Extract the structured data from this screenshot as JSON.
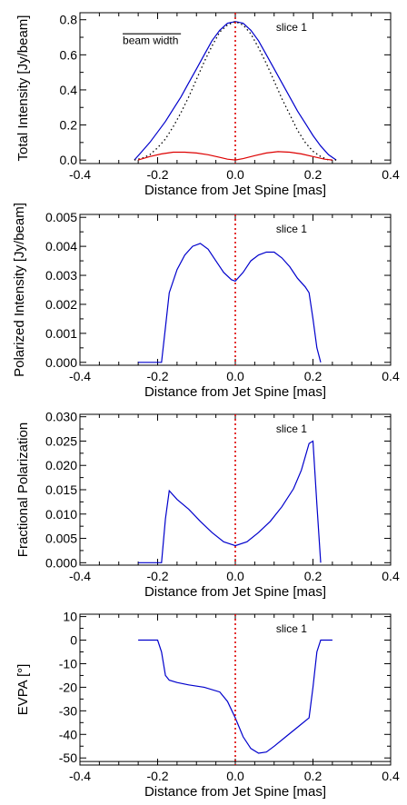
{
  "chart_data": [
    {
      "type": "line",
      "panel": "panel1",
      "xlabel": "Distance from Jet Spine [mas]",
      "ylabel": "Total Intensity [Jy/beam]",
      "xlim": [
        -0.4,
        0.4
      ],
      "ylim": [
        -0.02,
        0.84
      ],
      "x_ticks": [
        -0.4,
        -0.2,
        0.0,
        0.2,
        0.4
      ],
      "x_tick_labels": [
        "-0.4",
        "-0.2",
        "0.0",
        "0.2",
        "0.4"
      ],
      "y_ticks": [
        0.0,
        0.2,
        0.4,
        0.6,
        0.8
      ],
      "y_tick_labels": [
        "0.0",
        "0.2",
        "0.4",
        "0.6",
        "0.8"
      ],
      "panel_label": "slice 1",
      "vertical_line_x": 0.0,
      "annotation": {
        "label": "beam width",
        "x_start": -0.29,
        "x_end": -0.14,
        "y": 0.72,
        "label_y": 0.66
      },
      "series": [
        {
          "color": "#0000cc",
          "style": "solid",
          "x": [
            -0.26,
            -0.24,
            -0.22,
            -0.2,
            -0.18,
            -0.16,
            -0.14,
            -0.12,
            -0.1,
            -0.08,
            -0.06,
            -0.04,
            -0.02,
            0.0,
            0.02,
            0.04,
            0.06,
            0.08,
            0.1,
            0.12,
            0.14,
            0.16,
            0.18,
            0.2,
            0.22,
            0.24,
            0.26
          ],
          "y": [
            0.0,
            0.05,
            0.1,
            0.16,
            0.22,
            0.29,
            0.36,
            0.44,
            0.52,
            0.6,
            0.68,
            0.74,
            0.78,
            0.79,
            0.78,
            0.74,
            0.68,
            0.6,
            0.52,
            0.44,
            0.36,
            0.28,
            0.21,
            0.14,
            0.08,
            0.03,
            0.0
          ]
        },
        {
          "color": "#000000",
          "style": "dotted",
          "x": [
            -0.26,
            -0.24,
            -0.22,
            -0.2,
            -0.18,
            -0.16,
            -0.14,
            -0.12,
            -0.1,
            -0.08,
            -0.06,
            -0.04,
            -0.02,
            0.0,
            0.02,
            0.04,
            0.06,
            0.08,
            0.1,
            0.12,
            0.14,
            0.16,
            0.18,
            0.2,
            0.22,
            0.24,
            0.26
          ],
          "y": [
            0.0,
            0.01,
            0.03,
            0.07,
            0.12,
            0.19,
            0.27,
            0.36,
            0.46,
            0.56,
            0.65,
            0.73,
            0.77,
            0.79,
            0.77,
            0.72,
            0.64,
            0.55,
            0.45,
            0.35,
            0.26,
            0.17,
            0.1,
            0.05,
            0.02,
            0.0,
            0.0
          ]
        },
        {
          "color": "#dd0000",
          "style": "solid",
          "x": [
            -0.25,
            -0.22,
            -0.19,
            -0.16,
            -0.13,
            -0.1,
            -0.07,
            -0.04,
            -0.02,
            0.0,
            0.02,
            0.05,
            0.08,
            0.11,
            0.14,
            0.17,
            0.2,
            0.23,
            0.25
          ],
          "y": [
            0.0,
            0.02,
            0.035,
            0.045,
            0.045,
            0.04,
            0.03,
            0.015,
            0.005,
            0.0,
            0.008,
            0.025,
            0.04,
            0.048,
            0.045,
            0.035,
            0.02,
            0.005,
            0.0
          ]
        }
      ]
    },
    {
      "type": "line",
      "panel": "panel2",
      "xlabel": "Distance from Jet Spine [mas]",
      "ylabel": "Polarized Intensity [Jy/beam]",
      "xlim": [
        -0.4,
        0.4
      ],
      "ylim": [
        -0.0001,
        0.0051
      ],
      "x_ticks": [
        -0.4,
        -0.2,
        0.0,
        0.2,
        0.4
      ],
      "x_tick_labels": [
        "-0.4",
        "-0.2",
        "0.0",
        "0.2",
        "0.4"
      ],
      "y_ticks": [
        0.0,
        0.001,
        0.002,
        0.003,
        0.004,
        0.005
      ],
      "y_tick_labels": [
        "0.000",
        "0.001",
        "0.002",
        "0.003",
        "0.004",
        "0.005"
      ],
      "panel_label": "slice 1",
      "vertical_line_x": 0.0,
      "series": [
        {
          "color": "#0000cc",
          "style": "solid",
          "x": [
            -0.25,
            -0.19,
            -0.18,
            -0.17,
            -0.15,
            -0.13,
            -0.11,
            -0.09,
            -0.07,
            -0.05,
            -0.03,
            -0.01,
            0.0,
            0.02,
            0.04,
            0.06,
            0.08,
            0.1,
            0.12,
            0.14,
            0.16,
            0.18,
            0.19,
            0.2,
            0.21,
            0.22
          ],
          "y": [
            0.0,
            0.0,
            0.0012,
            0.0024,
            0.0032,
            0.0037,
            0.004,
            0.0041,
            0.0039,
            0.0035,
            0.0031,
            0.00285,
            0.0028,
            0.0031,
            0.0035,
            0.0037,
            0.0038,
            0.0038,
            0.0036,
            0.0033,
            0.0029,
            0.0026,
            0.0024,
            0.0015,
            0.0005,
            0.0
          ]
        }
      ]
    },
    {
      "type": "line",
      "panel": "panel3",
      "xlabel": "Distance from Jet Spine [mas]",
      "ylabel": "Fractional Polarization",
      "xlim": [
        -0.4,
        0.4
      ],
      "ylim": [
        -0.0005,
        0.0305
      ],
      "x_ticks": [
        -0.4,
        -0.2,
        0.0,
        0.2,
        0.4
      ],
      "x_tick_labels": [
        "-0.4",
        "-0.2",
        "0.0",
        "0.2",
        "0.4"
      ],
      "y_ticks": [
        0.0,
        0.005,
        0.01,
        0.015,
        0.02,
        0.025,
        0.03
      ],
      "y_tick_labels": [
        "0.000",
        "0.005",
        "0.010",
        "0.015",
        "0.020",
        "0.025",
        "0.030"
      ],
      "panel_label": "slice 1",
      "vertical_line_x": 0.0,
      "series": [
        {
          "color": "#0000cc",
          "style": "solid",
          "x": [
            -0.25,
            -0.19,
            -0.18,
            -0.17,
            -0.15,
            -0.12,
            -0.09,
            -0.06,
            -0.03,
            0.0,
            0.03,
            0.06,
            0.09,
            0.12,
            0.15,
            0.17,
            0.19,
            0.2,
            0.21,
            0.22
          ],
          "y": [
            0.0,
            0.0,
            0.009,
            0.0148,
            0.013,
            0.011,
            0.0085,
            0.0062,
            0.0043,
            0.0035,
            0.0043,
            0.0062,
            0.0085,
            0.0115,
            0.0152,
            0.019,
            0.0245,
            0.025,
            0.012,
            0.0
          ]
        }
      ]
    },
    {
      "type": "line",
      "panel": "panel4",
      "xlabel": "Distance from Jet Spine [mas]",
      "ylabel": "EVPA [°]",
      "xlim": [
        -0.4,
        0.4
      ],
      "ylim": [
        -53,
        11
      ],
      "x_ticks": [
        -0.4,
        -0.2,
        0.0,
        0.2,
        0.4
      ],
      "x_tick_labels": [
        "-0.4",
        "-0.2",
        "0.0",
        "0.2",
        "0.4"
      ],
      "y_ticks": [
        10,
        0,
        -10,
        -20,
        -30,
        -40,
        -50
      ],
      "y_tick_labels": [
        "10",
        "0",
        "-10",
        "-20",
        "-30",
        "-40",
        "-50"
      ],
      "panel_label": "slice 1",
      "vertical_line_x": 0.0,
      "horizontal_line_y": -51.5,
      "series": [
        {
          "color": "#0000cc",
          "style": "solid",
          "x": [
            -0.25,
            -0.2,
            -0.19,
            -0.18,
            -0.17,
            -0.15,
            -0.12,
            -0.08,
            -0.04,
            -0.02,
            0.0,
            0.02,
            0.04,
            0.06,
            0.08,
            0.1,
            0.13,
            0.16,
            0.19,
            0.2,
            0.21,
            0.22,
            0.25
          ],
          "y": [
            0.0,
            0.0,
            -5,
            -15,
            -17,
            -18,
            -19,
            -20,
            -22,
            -26,
            -33,
            -41,
            -46,
            -48,
            -47.5,
            -45,
            -41,
            -37,
            -33,
            -20,
            -5,
            0,
            0
          ]
        }
      ]
    }
  ]
}
